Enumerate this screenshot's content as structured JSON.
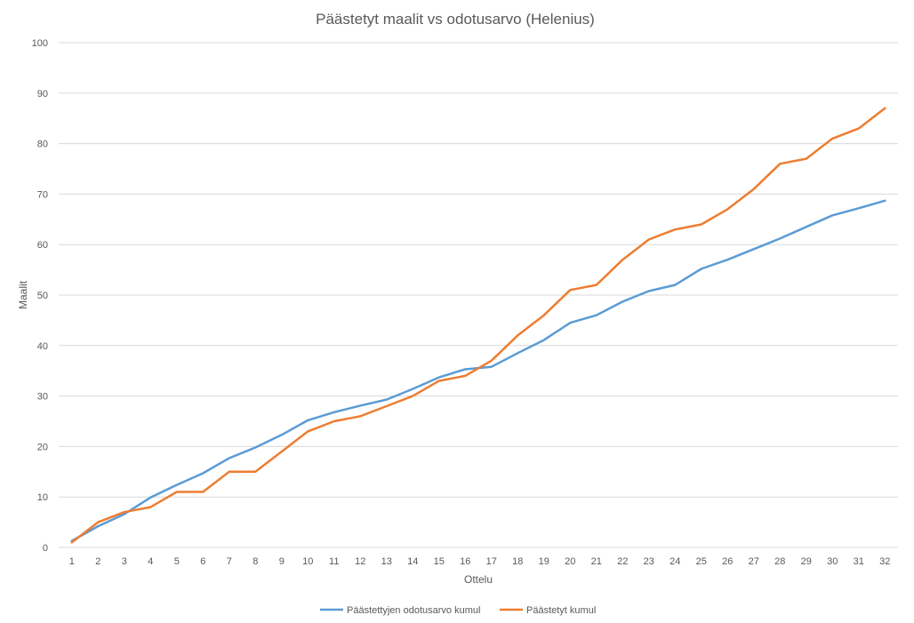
{
  "chart_data": {
    "type": "line",
    "title": "Päästetyt maalit vs odotusarvo (Helenius)",
    "xlabel": "Ottelu",
    "ylabel": "Maalit",
    "ylim": [
      0,
      100
    ],
    "yticks": [
      0,
      10,
      20,
      30,
      40,
      50,
      60,
      70,
      80,
      90,
      100
    ],
    "grid": "horizontal",
    "legend": "bottom",
    "categories": [
      "1",
      "2",
      "3",
      "4",
      "5",
      "6",
      "7",
      "8",
      "9",
      "10",
      "11",
      "12",
      "13",
      "14",
      "15",
      "16",
      "17",
      "18",
      "19",
      "20",
      "21",
      "22",
      "23",
      "24",
      "25",
      "26",
      "27",
      "28",
      "29",
      "30",
      "31",
      "32"
    ],
    "series": [
      {
        "name": "Päästettyjen odotusarvo kumul",
        "color": "#5b9bd5",
        "values": [
          1.3,
          4.2,
          6.6,
          9.9,
          12.4,
          14.7,
          17.7,
          19.8,
          22.3,
          25.2,
          26.8,
          28.1,
          29.3,
          31.4,
          33.7,
          35.3,
          35.8,
          38.5,
          41.1,
          44.5,
          46.0,
          48.7,
          50.8,
          52.0,
          55.2,
          57.0,
          59.1,
          61.2,
          63.5,
          65.8,
          67.2,
          68.7
        ]
      },
      {
        "name": "Päästetyt kumul",
        "color": "#ed7d31",
        "values": [
          1,
          5,
          7,
          8,
          11,
          11,
          15,
          15,
          19,
          23,
          25,
          26,
          28,
          30,
          33,
          34,
          37,
          42,
          46,
          51,
          52,
          57,
          61,
          63,
          64,
          67,
          71,
          76,
          77,
          81,
          83,
          87
        ]
      }
    ]
  }
}
